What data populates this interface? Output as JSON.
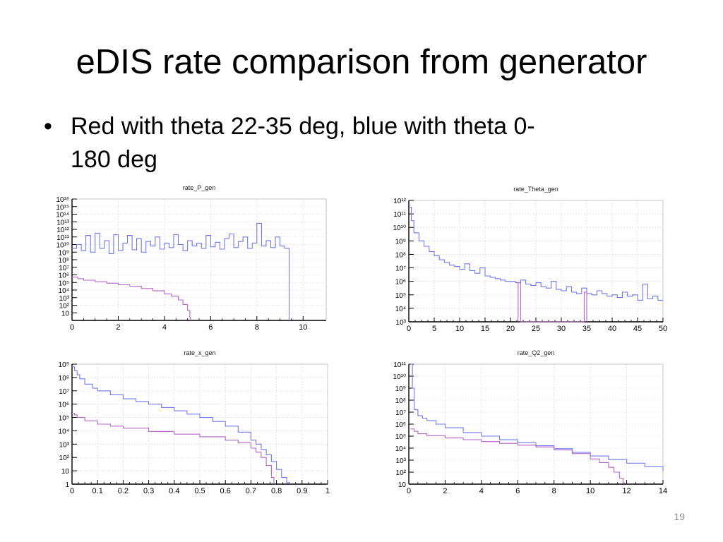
{
  "slide": {
    "title": "eDIS rate comparison from generator",
    "bullet_line1": "Red with theta 22-35 deg, blue with theta 0-",
    "bullet_line2": "180 deg",
    "slide_number": "19"
  },
  "colors": {
    "blue": "#6f78ef",
    "red": "#b566c8",
    "grid": "#d4d4d4",
    "axis": "#000000"
  },
  "chart_data": [
    {
      "id": "p",
      "type": "line",
      "title": "rate_P_gen",
      "xlim": [
        0,
        11
      ],
      "ylim": [
        0,
        16
      ],
      "log_y": true,
      "grid": true,
      "x_ticks": [
        0,
        2,
        4,
        6,
        8,
        10
      ],
      "x_labels": [
        "0",
        "2",
        "4",
        "6",
        "8",
        "10"
      ],
      "y_ticks": [
        1,
        2,
        3,
        4,
        5,
        6,
        7,
        8,
        9,
        10,
        11,
        12,
        13,
        14,
        15,
        16
      ],
      "y_labels": [
        "10",
        "10²",
        "10³",
        "10⁴",
        "10⁵",
        "10⁶",
        "10⁷",
        "10⁸",
        "10⁹",
        "10¹⁰",
        "10¹¹",
        "10¹²",
        "10¹³",
        "10¹⁴",
        "10¹⁵",
        "10¹⁶"
      ],
      "series": [
        {
          "color": "blue",
          "x": [
            0,
            0.2,
            0.4,
            0.6,
            0.8,
            1.0,
            1.2,
            1.4,
            1.6,
            1.8,
            2.0,
            2.2,
            2.4,
            2.6,
            2.8,
            3.0,
            3.2,
            3.4,
            3.6,
            3.8,
            4.0,
            4.2,
            4.4,
            4.6,
            4.8,
            5.0,
            5.2,
            5.4,
            5.6,
            5.8,
            6.0,
            6.2,
            6.4,
            6.6,
            6.8,
            7.0,
            7.2,
            7.4,
            7.6,
            7.8,
            8.0,
            8.2,
            8.4,
            8.6,
            8.8,
            9.0,
            9.2,
            9.4
          ],
          "y": [
            9.5,
            10.0,
            9.2,
            11.2,
            9.0,
            11.5,
            9.5,
            10.5,
            8.8,
            11.3,
            9.2,
            10.2,
            11.2,
            9.3,
            10.8,
            9.0,
            10.4,
            9.8,
            11.0,
            9.4,
            10.2,
            9.6,
            11.3,
            10.0,
            9.2,
            10.5,
            9.8,
            10.2,
            9.5,
            11.2,
            9.7,
            10.3,
            9.4,
            10.8,
            11.4,
            9.6,
            10.4,
            11.0,
            9.5,
            10.2,
            12.8,
            9.8,
            10.5,
            9.6,
            11.0,
            9.8,
            9.5,
            0
          ]
        },
        {
          "color": "red",
          "x": [
            0,
            0.25,
            0.5,
            1.0,
            1.5,
            2.0,
            2.5,
            3.0,
            3.5,
            4.0,
            4.3,
            4.6,
            4.8,
            5.0,
            5.1,
            5.12
          ],
          "y": [
            5.7,
            5.5,
            5.3,
            5.1,
            4.9,
            4.7,
            4.5,
            4.2,
            3.9,
            3.5,
            3.2,
            2.7,
            2.1,
            1.3,
            0.4,
            0
          ]
        }
      ]
    },
    {
      "id": "theta",
      "type": "line",
      "title": "rate_Theta_gen",
      "xlim": [
        0,
        50
      ],
      "ylim": [
        3,
        12
      ],
      "log_y": true,
      "grid": true,
      "x_ticks": [
        0,
        5,
        10,
        15,
        20,
        25,
        30,
        35,
        40,
        45,
        50
      ],
      "x_labels": [
        "0",
        "5",
        "10",
        "15",
        "20",
        "25",
        "30",
        "35",
        "40",
        "45",
        "50"
      ],
      "y_ticks": [
        3,
        4,
        5,
        6,
        7,
        8,
        9,
        10,
        11,
        12
      ],
      "y_labels": [
        "10³",
        "10⁴",
        "10⁵",
        "10⁶",
        "10⁷",
        "10⁸",
        "10⁹",
        "10¹⁰",
        "10¹¹",
        "10¹²"
      ],
      "series": [
        {
          "color": "blue",
          "x": [
            0,
            0.5,
            1,
            2,
            3,
            4,
            5,
            6,
            7,
            8,
            9,
            10,
            11,
            12,
            13,
            14,
            15,
            16,
            17,
            18,
            19,
            20,
            21,
            22,
            23,
            24,
            25,
            26,
            27,
            28,
            29,
            30,
            31,
            32,
            33,
            34,
            35,
            36,
            37,
            38,
            39,
            40,
            41,
            42,
            43,
            44,
            45,
            46,
            47,
            48,
            49,
            50
          ],
          "y": [
            11.5,
            10.5,
            9.6,
            9.0,
            8.6,
            8.2,
            7.9,
            7.6,
            7.4,
            7.2,
            7.1,
            6.9,
            7.3,
            6.8,
            6.6,
            7.0,
            6.4,
            6.3,
            6.2,
            6.1,
            6.0,
            6.0,
            5.9,
            6.1,
            5.8,
            5.7,
            5.9,
            5.6,
            5.5,
            6.0,
            5.4,
            5.3,
            5.6,
            5.2,
            5.1,
            5.5,
            5.1,
            5.0,
            5.3,
            5.1,
            4.9,
            5.0,
            4.8,
            5.2,
            4.9,
            5.0,
            4.6,
            5.8,
            4.7,
            4.9,
            4.6,
            4.6
          ]
        },
        {
          "color": "red",
          "x": [
            21.5,
            21.5,
            22,
            22,
            34.5,
            34.5,
            35,
            35
          ],
          "y": [
            3,
            5.9,
            5.9,
            3,
            3,
            5.2,
            5.2,
            3
          ]
        }
      ]
    },
    {
      "id": "x",
      "type": "line",
      "title": "rate_x_gen",
      "xlim": [
        0,
        1
      ],
      "ylim": [
        0,
        9
      ],
      "log_y": true,
      "grid": true,
      "x_ticks": [
        0,
        0.1,
        0.2,
        0.3,
        0.4,
        0.5,
        0.6,
        0.7,
        0.8,
        0.9,
        1.0
      ],
      "x_labels": [
        "0",
        "0.1",
        "0.2",
        "0.3",
        "0.4",
        "0.5",
        "0.6",
        "0.7",
        "0.8",
        "0.9",
        "1"
      ],
      "y_ticks": [
        0,
        1,
        2,
        3,
        4,
        5,
        6,
        7,
        8,
        9
      ],
      "y_labels": [
        "1",
        "10",
        "10²",
        "10³",
        "10⁴",
        "10⁵",
        "10⁶",
        "10⁷",
        "10⁸",
        "10⁹"
      ],
      "series": [
        {
          "color": "blue",
          "x": [
            0.0,
            0.01,
            0.02,
            0.03,
            0.05,
            0.08,
            0.1,
            0.15,
            0.2,
            0.25,
            0.3,
            0.35,
            0.4,
            0.45,
            0.5,
            0.55,
            0.6,
            0.65,
            0.7,
            0.72,
            0.74,
            0.76,
            0.78,
            0.8,
            0.82,
            0.84,
            0.85
          ],
          "y": [
            8.8,
            8.5,
            8.2,
            7.9,
            7.5,
            7.2,
            7.0,
            6.7,
            6.4,
            6.2,
            6.0,
            5.75,
            5.5,
            5.25,
            5.0,
            4.7,
            4.35,
            3.9,
            3.3,
            3.0,
            2.6,
            2.2,
            1.7,
            1.1,
            0.5,
            0.1,
            0
          ]
        },
        {
          "color": "red",
          "x": [
            0.0,
            0.01,
            0.02,
            0.05,
            0.1,
            0.15,
            0.2,
            0.3,
            0.4,
            0.5,
            0.6,
            0.65,
            0.7,
            0.72,
            0.74,
            0.76,
            0.78,
            0.79
          ],
          "y": [
            5.3,
            5.2,
            5.0,
            4.75,
            4.5,
            4.35,
            4.2,
            3.95,
            3.75,
            3.55,
            3.3,
            3.1,
            2.7,
            2.4,
            2.0,
            1.4,
            0.5,
            0
          ]
        }
      ]
    },
    {
      "id": "q2",
      "type": "line",
      "title": "rate_Q2_gen",
      "xlim": [
        0,
        14
      ],
      "ylim": [
        1,
        11
      ],
      "log_y": true,
      "grid": true,
      "x_ticks": [
        0,
        2,
        4,
        6,
        8,
        10,
        12,
        14
      ],
      "x_labels": [
        "0",
        "2",
        "4",
        "6",
        "8",
        "10",
        "12",
        "14"
      ],
      "y_ticks": [
        1,
        2,
        3,
        4,
        5,
        6,
        7,
        8,
        9,
        10,
        11
      ],
      "y_labels": [
        "10",
        "10²",
        "10³",
        "10⁴",
        "10⁵",
        "10⁶",
        "10⁷",
        "10⁸",
        "10⁹",
        "10¹⁰",
        "10¹¹"
      ],
      "series": [
        {
          "color": "blue",
          "x": [
            0.1,
            0.2,
            0.3,
            0.5,
            0.75,
            1,
            1.5,
            2,
            3,
            4,
            5,
            6,
            7,
            8,
            9,
            10,
            11,
            12,
            13,
            14
          ],
          "y": [
            11.0,
            9.0,
            7.2,
            6.7,
            6.5,
            6.3,
            6.0,
            5.7,
            5.3,
            5.0,
            4.7,
            4.45,
            4.2,
            3.95,
            3.65,
            3.35,
            3.05,
            2.75,
            2.45,
            2.1
          ]
        },
        {
          "color": "red",
          "x": [
            0.1,
            0.3,
            0.5,
            1,
            2,
            3,
            4,
            5,
            6,
            7,
            8,
            9,
            10,
            10.5,
            11,
            11.3,
            11.6,
            11.8,
            11.9
          ],
          "y": [
            5.6,
            5.4,
            5.2,
            5.05,
            4.85,
            4.7,
            4.55,
            4.4,
            4.25,
            4.1,
            3.85,
            3.55,
            3.1,
            2.8,
            2.4,
            2.0,
            1.5,
            1.1,
            0.9
          ]
        }
      ]
    }
  ]
}
